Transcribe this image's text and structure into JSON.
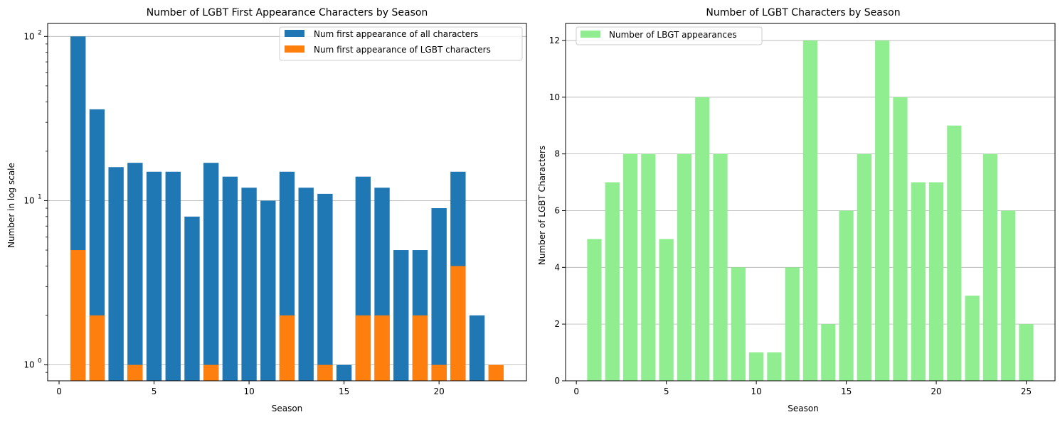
{
  "chart_data": [
    {
      "type": "bar",
      "title": "Number of LGBT First Appearance Characters by Season",
      "xlabel": "Season",
      "ylabel": "Number in log scale",
      "yscale": "log",
      "ylim": [
        0.8,
        120
      ],
      "xlim": [
        -0.6,
        24.6
      ],
      "grid": "y",
      "legend_position": "top-right",
      "x_ticks": [
        0,
        5,
        10,
        15,
        20
      ],
      "y_ticks": [
        {
          "value": 1,
          "base": "10",
          "exp": "0"
        },
        {
          "value": 10,
          "base": "10",
          "exp": "1"
        },
        {
          "value": 100,
          "base": "10",
          "exp": "2"
        }
      ],
      "x": [
        1,
        2,
        3,
        4,
        5,
        6,
        7,
        8,
        9,
        10,
        11,
        12,
        13,
        14,
        15,
        16,
        17,
        18,
        19,
        20,
        21,
        22,
        23
      ],
      "series": [
        {
          "name": "Num first appearance of all characters",
          "color": "#1f77b4",
          "values": [
            100,
            36,
            16,
            17,
            15,
            15,
            8,
            17,
            14,
            12,
            10,
            15,
            12,
            11,
            1,
            14,
            12,
            5,
            5,
            9,
            15,
            2,
            null
          ]
        },
        {
          "name": "Num first appearance of LGBT characters",
          "color": "#ff7f0e",
          "values": [
            5,
            2,
            null,
            1,
            null,
            null,
            null,
            1,
            null,
            null,
            null,
            2,
            null,
            1,
            null,
            2,
            2,
            null,
            2,
            1,
            4,
            null,
            1
          ]
        }
      ]
    },
    {
      "type": "bar",
      "title": "Number of LGBT Characters by Season",
      "xlabel": "Season",
      "ylabel": "Number of LGBT Characters",
      "ylim": [
        0,
        12.6
      ],
      "xlim": [
        -0.6,
        26.6
      ],
      "grid": "y",
      "legend_position": "top-left",
      "x_ticks": [
        0,
        5,
        10,
        15,
        20,
        25
      ],
      "y_ticks": [
        0,
        2,
        4,
        6,
        8,
        10,
        12
      ],
      "x": [
        1,
        2,
        3,
        4,
        5,
        6,
        7,
        8,
        9,
        10,
        11,
        12,
        13,
        14,
        15,
        16,
        17,
        18,
        19,
        20,
        21,
        22,
        23,
        24,
        25
      ],
      "series": [
        {
          "name": "Number of LBGT appearances",
          "color": "#90ee90",
          "values": [
            5,
            7,
            8,
            8,
            5,
            8,
            10,
            8,
            4,
            1,
            1,
            4,
            12,
            2,
            6,
            8,
            12,
            10,
            7,
            7,
            9,
            3,
            8,
            6,
            2
          ]
        }
      ]
    }
  ]
}
